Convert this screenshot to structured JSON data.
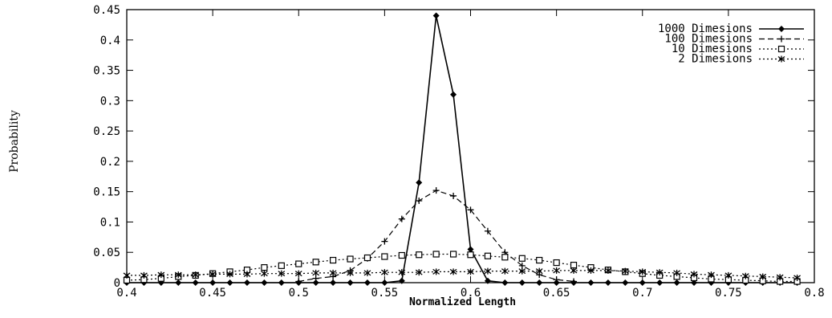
{
  "chart_data": {
    "type": "line",
    "title": "",
    "xlabel": "Normalized Length",
    "ylabel": "Probability",
    "xlim": [
      0.4,
      0.8
    ],
    "ylim": [
      0,
      0.45
    ],
    "xticks": [
      0.4,
      0.45,
      0.5,
      0.55,
      0.6,
      0.65,
      0.7,
      0.75,
      0.8
    ],
    "xtick_labels": [
      "0.4",
      "0.45",
      "0.5",
      "0.55",
      "0.6",
      "0.65",
      "0.7",
      "0.75",
      "0.8"
    ],
    "yticks": [
      0,
      0.05,
      0.1,
      0.15,
      0.2,
      0.25,
      0.3,
      0.35,
      0.4,
      0.45
    ],
    "ytick_labels": [
      "0",
      "0.05",
      "0.1",
      "0.15",
      "0.2",
      "0.25",
      "0.3",
      "0.35",
      "0.4",
      "0.45"
    ],
    "grid": false,
    "legend_position": "top-right",
    "series": [
      {
        "name": "1000 Dimesions",
        "marker": "diamond",
        "line_style": "solid",
        "color": "#000000",
        "x": [
          0.4,
          0.41,
          0.42,
          0.43,
          0.44,
          0.45,
          0.46,
          0.47,
          0.48,
          0.49,
          0.5,
          0.51,
          0.52,
          0.53,
          0.54,
          0.55,
          0.56,
          0.57,
          0.58,
          0.59,
          0.6,
          0.61,
          0.62,
          0.63,
          0.64,
          0.65,
          0.66,
          0.67,
          0.68,
          0.69,
          0.7,
          0.71,
          0.72,
          0.73,
          0.74,
          0.75,
          0.76,
          0.77,
          0.78,
          0.79
        ],
        "y": [
          0,
          0,
          0,
          0,
          0,
          0,
          0,
          0,
          0,
          0,
          0,
          0,
          0,
          0,
          0,
          0,
          0.003,
          0.165,
          0.44,
          0.31,
          0.055,
          0.003,
          0,
          0,
          0,
          0,
          0,
          0,
          0,
          0,
          0,
          0,
          0,
          0,
          0,
          0,
          0,
          0,
          0,
          0
        ]
      },
      {
        "name": "100 Dimesions",
        "marker": "plus",
        "line_style": "dashed",
        "color": "#000000",
        "x": [
          0.5,
          0.51,
          0.52,
          0.53,
          0.54,
          0.55,
          0.56,
          0.57,
          0.58,
          0.59,
          0.6,
          0.61,
          0.62,
          0.63,
          0.64,
          0.65,
          0.66
        ],
        "y": [
          0.002,
          0.007,
          0.01,
          0.02,
          0.04,
          0.068,
          0.105,
          0.135,
          0.152,
          0.143,
          0.12,
          0.085,
          0.05,
          0.028,
          0.013,
          0.005,
          0.002
        ]
      },
      {
        "name": "10 Dimesions",
        "marker": "square",
        "line_style": "dotted",
        "color": "#000000",
        "x": [
          0.4,
          0.41,
          0.42,
          0.43,
          0.44,
          0.45,
          0.46,
          0.47,
          0.48,
          0.49,
          0.5,
          0.51,
          0.52,
          0.53,
          0.54,
          0.55,
          0.56,
          0.57,
          0.58,
          0.59,
          0.6,
          0.61,
          0.62,
          0.63,
          0.64,
          0.65,
          0.66,
          0.67,
          0.68,
          0.69,
          0.7,
          0.71,
          0.72,
          0.73,
          0.74,
          0.75,
          0.76,
          0.77,
          0.78,
          0.79
        ],
        "y": [
          0.004,
          0.005,
          0.007,
          0.01,
          0.012,
          0.015,
          0.018,
          0.021,
          0.025,
          0.028,
          0.031,
          0.034,
          0.037,
          0.039,
          0.041,
          0.043,
          0.045,
          0.046,
          0.047,
          0.047,
          0.046,
          0.044,
          0.042,
          0.04,
          0.037,
          0.033,
          0.029,
          0.025,
          0.021,
          0.018,
          0.015,
          0.012,
          0.01,
          0.008,
          0.006,
          0.005,
          0.004,
          0.003,
          0.002,
          0.002
        ]
      },
      {
        "name": "2 Dimesions",
        "marker": "star",
        "line_style": "dotted",
        "color": "#000000",
        "x": [
          0.4,
          0.41,
          0.42,
          0.43,
          0.44,
          0.45,
          0.46,
          0.47,
          0.48,
          0.49,
          0.5,
          0.51,
          0.52,
          0.53,
          0.54,
          0.55,
          0.56,
          0.57,
          0.58,
          0.59,
          0.6,
          0.61,
          0.62,
          0.63,
          0.64,
          0.65,
          0.66,
          0.67,
          0.68,
          0.69,
          0.7,
          0.71,
          0.72,
          0.73,
          0.74,
          0.75,
          0.76,
          0.77,
          0.78,
          0.79
        ],
        "y": [
          0.012,
          0.012,
          0.013,
          0.013,
          0.013,
          0.014,
          0.014,
          0.014,
          0.015,
          0.015,
          0.015,
          0.016,
          0.016,
          0.016,
          0.016,
          0.017,
          0.017,
          0.017,
          0.018,
          0.018,
          0.018,
          0.019,
          0.019,
          0.019,
          0.019,
          0.02,
          0.02,
          0.02,
          0.02,
          0.019,
          0.018,
          0.017,
          0.016,
          0.014,
          0.013,
          0.012,
          0.011,
          0.01,
          0.009,
          0.008
        ]
      }
    ]
  }
}
